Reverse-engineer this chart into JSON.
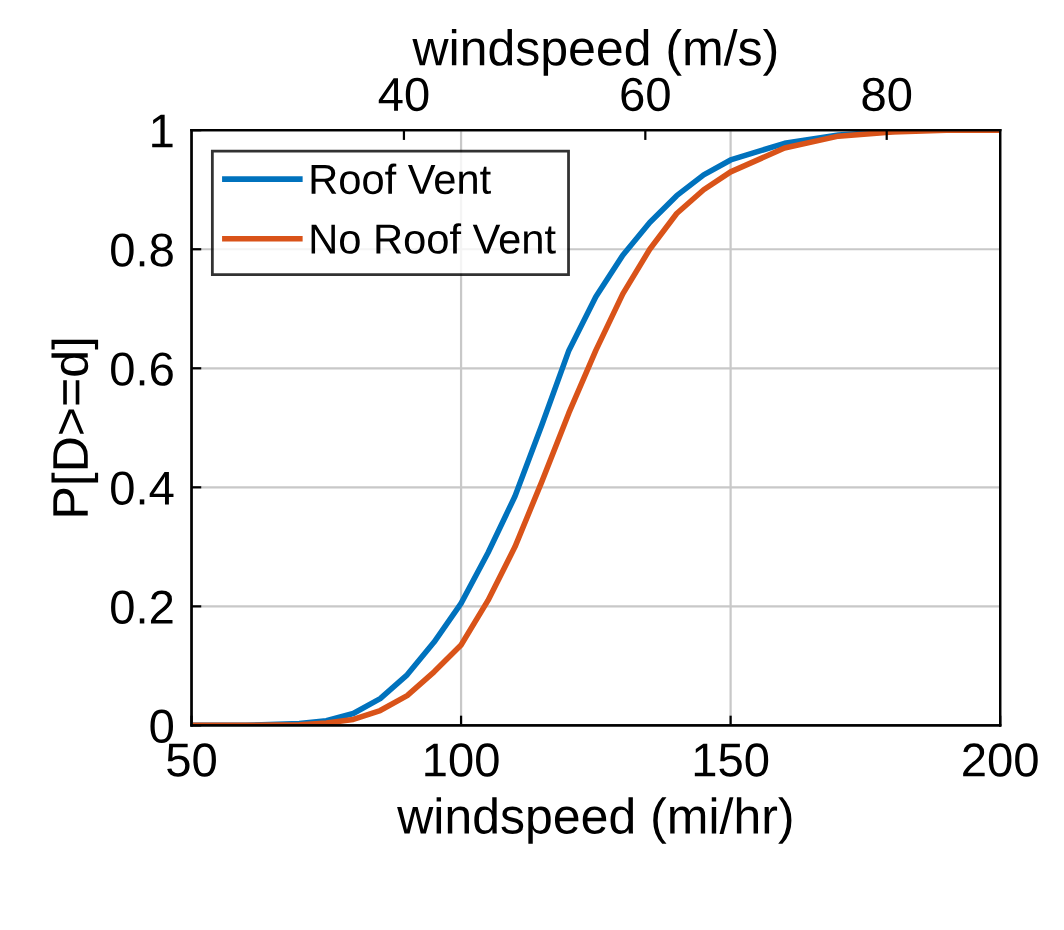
{
  "chart_data": {
    "type": "line",
    "xlabel": "windspeed (mi/hr)",
    "ylabel": "P[D>=d]",
    "x2label": "windspeed (m/s)",
    "x": [
      50,
      60,
      70,
      75,
      80,
      85,
      90,
      95,
      100,
      105,
      110,
      115,
      120,
      125,
      130,
      135,
      140,
      145,
      150,
      160,
      170,
      180,
      190,
      200
    ],
    "series": [
      {
        "name": "Roof Vent",
        "color": "#0072bd",
        "values": [
          0,
          0,
          0.003,
          0.008,
          0.02,
          0.045,
          0.085,
          0.14,
          0.205,
          0.29,
          0.385,
          0.505,
          0.63,
          0.72,
          0.79,
          0.845,
          0.89,
          0.925,
          0.95,
          0.978,
          0.992,
          0.998,
          null,
          null
        ]
      },
      {
        "name": "No Roof Vent",
        "color": "#d95319",
        "values": [
          0,
          0,
          0.001,
          0.004,
          0.01,
          0.025,
          0.05,
          0.09,
          0.135,
          0.21,
          0.3,
          0.41,
          0.525,
          0.63,
          0.725,
          0.8,
          0.86,
          0.9,
          0.93,
          0.97,
          0.99,
          0.997,
          1,
          1
        ]
      }
    ],
    "xlim": [
      50,
      200
    ],
    "xticks": [
      50,
      100,
      150,
      200
    ],
    "ylim": [
      0,
      1
    ],
    "yticks": [
      0,
      0.2,
      0.4,
      0.6,
      0.8,
      1
    ],
    "x2lim": [
      22.4,
      89.4
    ],
    "x2ticks": [
      40,
      60,
      80
    ],
    "grid": true,
    "legend": "top left",
    "line_style": "solid",
    "marker": "none"
  }
}
